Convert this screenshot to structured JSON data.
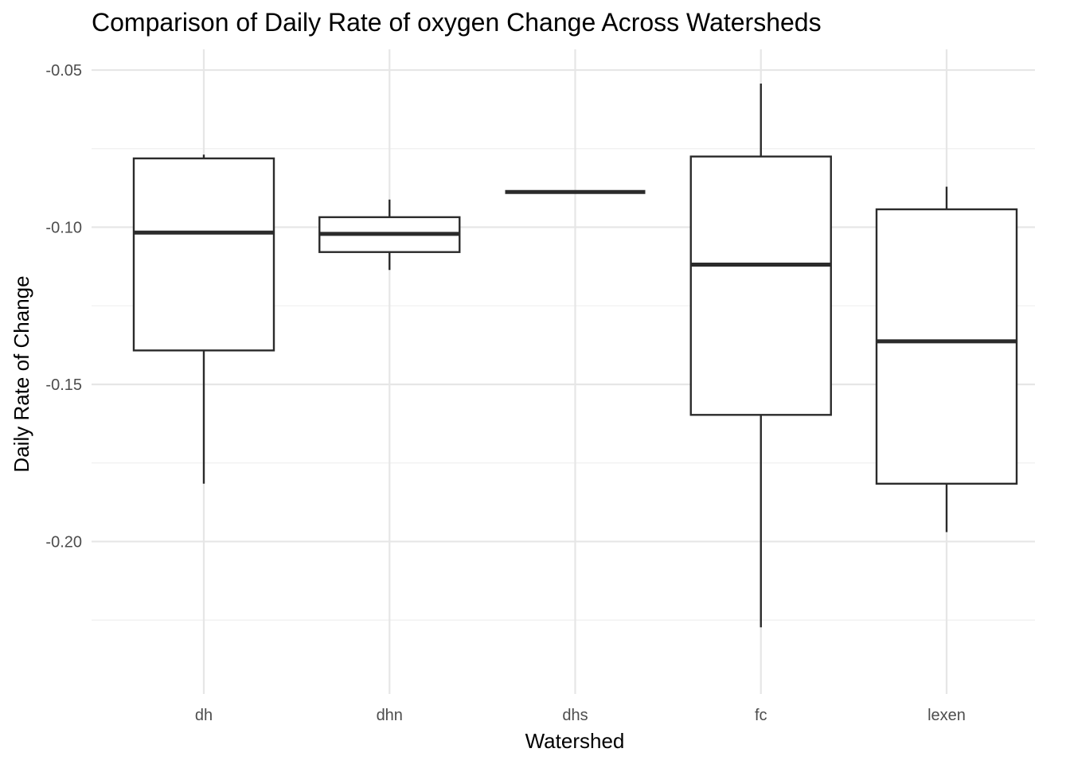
{
  "chart_data": {
    "type": "boxplot",
    "title": "Comparison of Daily Rate of oxygen Change Across Watersheds",
    "xlabel": "Watershed",
    "ylabel": "Daily Rate of Change",
    "categories": [
      "dh",
      "dhn",
      "dhs",
      "fc",
      "lexen"
    ],
    "ylim": [
      -0.2485,
      -0.0434
    ],
    "yticks": [
      -0.05,
      -0.1,
      -0.15,
      -0.2
    ],
    "ytick_labels": [
      "-0.05",
      "-0.10",
      "-0.15",
      "-0.20"
    ],
    "grid": true,
    "boxes": [
      {
        "category": "dh",
        "min": -0.1816,
        "q1": -0.1392,
        "median": -0.1017,
        "q3": -0.0781,
        "max": -0.0769
      },
      {
        "category": "dhn",
        "min": -0.1136,
        "q1": -0.1079,
        "median": -0.1021,
        "q3": -0.0968,
        "max": -0.0912
      },
      {
        "category": "dhs",
        "min": -0.0888,
        "q1": -0.0888,
        "median": -0.0888,
        "q3": -0.0888,
        "max": -0.0888
      },
      {
        "category": "fc",
        "min": -0.2273,
        "q1": -0.1597,
        "median": -0.1119,
        "q3": -0.0775,
        "max": -0.0543
      },
      {
        "category": "lexen",
        "min": -0.197,
        "q1": -0.1816,
        "median": -0.1363,
        "q3": -0.0943,
        "max": -0.0871
      }
    ]
  }
}
